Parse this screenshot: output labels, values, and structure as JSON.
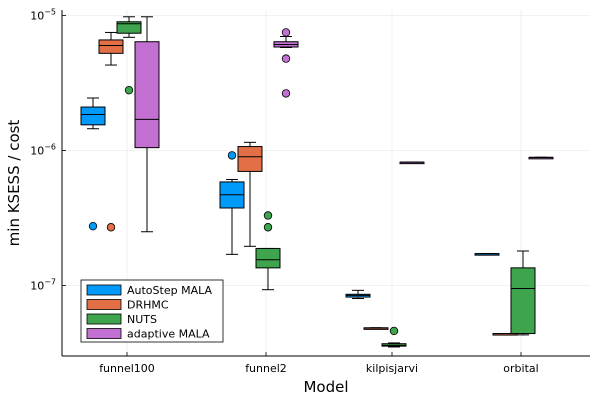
{
  "chart_data": {
    "type": "box",
    "xlabel": "Model",
    "ylabel": "min KSESS / cost",
    "yscale": "log10",
    "ylim": [
      3e-08,
      1.1e-05
    ],
    "y_ticks": [
      {
        "value": 1e-07,
        "base": "10",
        "exp": "−7"
      },
      {
        "value": 1e-06,
        "base": "10",
        "exp": "−6"
      },
      {
        "value": 1e-05,
        "base": "10",
        "exp": "−5"
      }
    ],
    "categories": [
      "funnel100",
      "funnel2",
      "kilpisjarvi",
      "orbital"
    ],
    "grid": true,
    "legend_position": "bottom-left",
    "series": [
      {
        "name": "AutoStep MALA",
        "color": "#009AFA",
        "boxes": [
          {
            "category": "funnel100",
            "whisker_low": 1.45e-06,
            "q1": 1.55e-06,
            "median": 1.85e-06,
            "q3": 2.1e-06,
            "whisker_high": 2.45e-06,
            "outliers": [
              2.75e-07
            ]
          },
          {
            "category": "funnel2",
            "whisker_low": 1.7e-07,
            "q1": 3.75e-07,
            "median": 4.7e-07,
            "q3": 5.85e-07,
            "whisker_high": 6.1e-07,
            "outliers": [
              9.2e-07
            ]
          },
          {
            "category": "kilpisjarvi",
            "whisker_low": 8e-08,
            "q1": 8.2e-08,
            "median": 8.45e-08,
            "q3": 8.6e-08,
            "whisker_high": 9.2e-08,
            "outliers": []
          },
          {
            "category": "orbital",
            "whisker_low": 1.72e-07,
            "q1": 1.72e-07,
            "median": 1.72e-07,
            "q3": 1.72e-07,
            "whisker_high": 1.72e-07,
            "outliers": []
          }
        ]
      },
      {
        "name": "DRHMC",
        "color": "#E36F47",
        "boxes": [
          {
            "category": "funnel100",
            "whisker_low": 4.3e-06,
            "q1": 5.25e-06,
            "median": 6e-06,
            "q3": 6.6e-06,
            "whisker_high": 7.5e-06,
            "outliers": [
              2.7e-07
            ]
          },
          {
            "category": "funnel2",
            "whisker_low": 1.95e-07,
            "q1": 7e-07,
            "median": 9e-07,
            "q3": 1.07e-06,
            "whisker_high": 1.15e-06,
            "outliers": []
          },
          {
            "category": "kilpisjarvi",
            "whisker_low": 4.85e-08,
            "q1": 4.85e-08,
            "median": 4.85e-08,
            "q3": 4.85e-08,
            "whisker_high": 4.85e-08,
            "outliers": []
          },
          {
            "category": "orbital",
            "whisker_low": 4.4e-08,
            "q1": 4.4e-08,
            "median": 4.4e-08,
            "q3": 4.4e-08,
            "whisker_high": 4.4e-08,
            "outliers": []
          }
        ]
      },
      {
        "name": "NUTS",
        "color": "#3EA44E",
        "boxes": [
          {
            "category": "funnel100",
            "whisker_low": 6.9e-06,
            "q1": 7.4e-06,
            "median": 8.7e-06,
            "q3": 9e-06,
            "whisker_high": 9.8e-06,
            "outliers": [
              2.8e-06
            ]
          },
          {
            "category": "funnel2",
            "whisker_low": 9.3e-08,
            "q1": 1.35e-07,
            "median": 1.55e-07,
            "q3": 1.88e-07,
            "whisker_high": 1.88e-07,
            "outliers": [
              3.3e-07,
              2.7e-07
            ]
          },
          {
            "category": "kilpisjarvi",
            "whisker_low": 3.5e-08,
            "q1": 3.55e-08,
            "median": 3.6e-08,
            "q3": 3.7e-08,
            "whisker_high": 3.75e-08,
            "outliers": [
              4.6e-08
            ]
          },
          {
            "category": "orbital",
            "whisker_low": 4.3e-08,
            "q1": 4.4e-08,
            "median": 9.5e-08,
            "q3": 1.35e-07,
            "whisker_high": 1.8e-07,
            "outliers": []
          }
        ]
      },
      {
        "name": "adaptive MALA",
        "color": "#C271D2",
        "boxes": [
          {
            "category": "funnel100",
            "whisker_low": 2.5e-07,
            "q1": 1.05e-06,
            "median": 1.7e-06,
            "q3": 6.4e-06,
            "whisker_high": 9.8e-06,
            "outliers": []
          },
          {
            "category": "funnel2",
            "whisker_low": 5.8e-06,
            "q1": 5.85e-06,
            "median": 6.1e-06,
            "q3": 6.4e-06,
            "whisker_high": 7e-06,
            "outliers": [
              7.5e-06,
              4.8e-06,
              2.65e-06
            ]
          },
          {
            "category": "kilpisjarvi",
            "whisker_low": 8.2e-07,
            "q1": 8.2e-07,
            "median": 8.2e-07,
            "q3": 8.2e-07,
            "whisker_high": 8.2e-07,
            "outliers": []
          },
          {
            "category": "orbital",
            "whisker_low": 8.9e-07,
            "q1": 8.9e-07,
            "median": 8.9e-07,
            "q3": 8.9e-07,
            "whisker_high": 8.9e-07,
            "outliers": []
          }
        ]
      }
    ]
  }
}
